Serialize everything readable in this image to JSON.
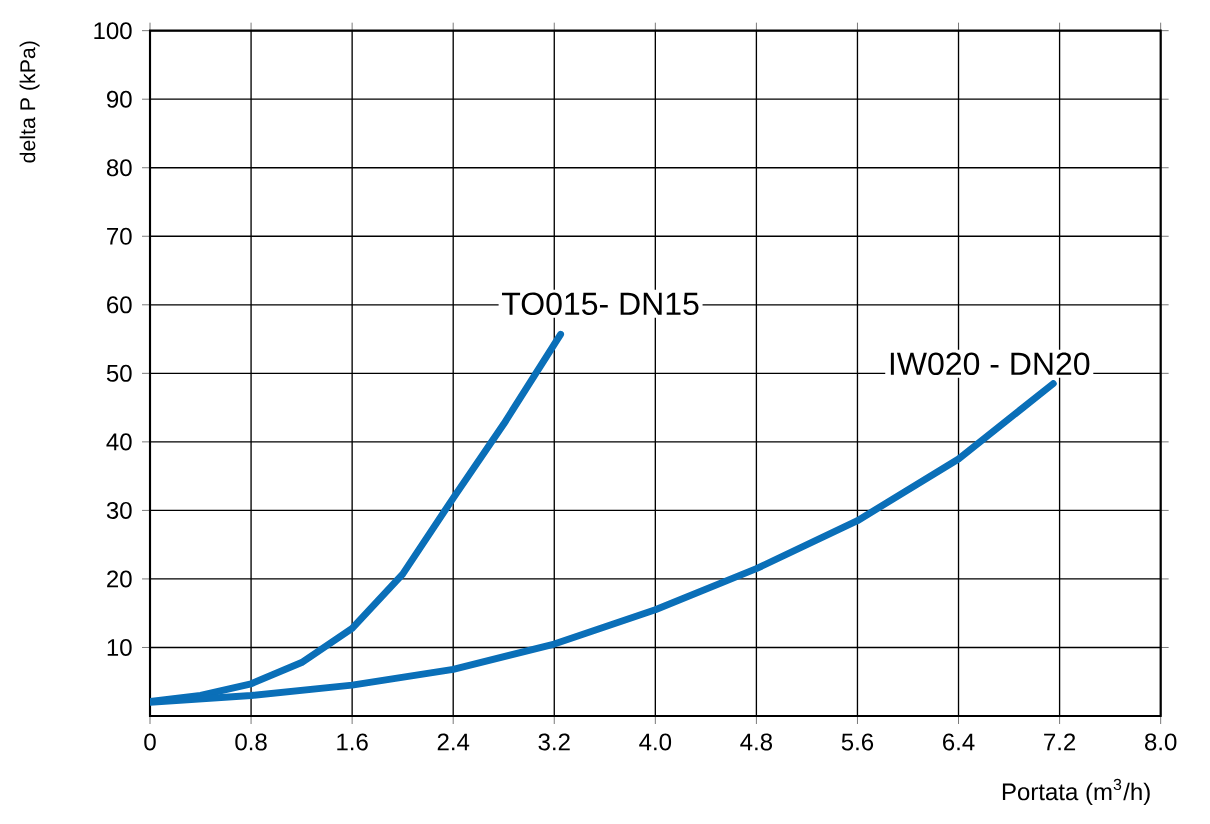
{
  "chart_data": {
    "type": "line",
    "xlabel": "Portata (m$^{3}$/h)",
    "ylabel": "delta P (kPa)",
    "xlim": [
      0,
      8
    ],
    "ylim": [
      0,
      100
    ],
    "xticks": [
      0,
      0.8,
      1.6,
      2.4,
      3.2,
      {
        "value": 4,
        "label": "4.0"
      },
      4.8,
      5.6,
      6.4,
      7.2,
      {
        "value": 8,
        "label": "8.0"
      }
    ],
    "yticks": [
      10,
      20,
      30,
      40,
      50,
      60,
      70,
      80,
      90,
      100
    ],
    "grid": true,
    "marker": "none",
    "line_style": "solid",
    "series": [
      {
        "name": "TO015- DN15",
        "color": "#0a6fb8",
        "x": [
          0,
          0.4,
          0.8,
          1.2,
          1.6,
          2.0,
          2.4,
          2.8,
          3.25
        ],
        "values": [
          2.1,
          3,
          4.7,
          7.8,
          12.8,
          20.7,
          31.8,
          42.6,
          55.7
        ]
      },
      {
        "name": "IW020 - DN20",
        "color": "#0a6fb8",
        "x": [
          0,
          0.8,
          1.6,
          2.4,
          3.2,
          4.0,
          4.8,
          5.6,
          6.4,
          7.15
        ],
        "values": [
          2,
          3,
          4.5,
          6.8,
          10.5,
          15.5,
          21.5,
          28.5,
          37.5,
          48.5
        ]
      }
    ]
  }
}
